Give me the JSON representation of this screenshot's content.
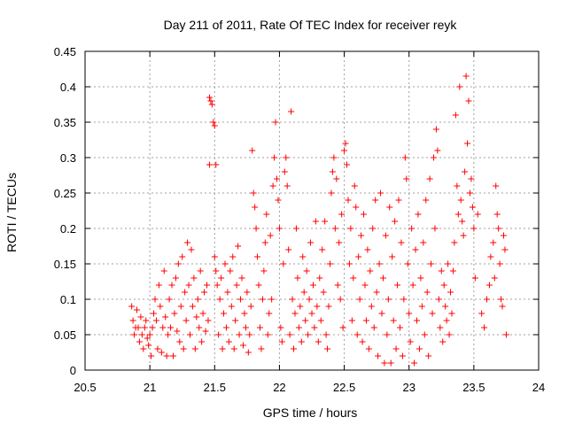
{
  "chart_data": {
    "type": "scatter",
    "title": "Day 211 of 2011, Rate Of TEC Index for receiver reyk",
    "xlabel": "GPS time / hours",
    "ylabel": "ROTI / TECUs",
    "xlim": [
      20.5,
      24
    ],
    "ylim": [
      0,
      0.45
    ],
    "xticks": [
      20.5,
      21,
      21.5,
      22,
      22.5,
      23,
      23.5,
      24
    ],
    "xtick_labels": [
      "20.5",
      "21",
      "21.5",
      "22",
      "22.5",
      "23",
      "23.5",
      "24"
    ],
    "yticks": [
      0,
      0.05,
      0.1,
      0.15,
      0.2,
      0.25,
      0.3,
      0.35,
      0.4,
      0.45
    ],
    "ytick_labels": [
      "0",
      "0.05",
      "0.1",
      "0.15",
      "0.2",
      "0.25",
      "0.3",
      "0.35",
      "0.4",
      "0.45"
    ],
    "grid": true,
    "marker": "+",
    "color": "#ff0000",
    "series": [
      {
        "name": "ROTI",
        "points": [
          [
            20.86,
            0.09
          ],
          [
            20.87,
            0.07
          ],
          [
            20.88,
            0.05
          ],
          [
            20.89,
            0.06
          ],
          [
            20.9,
            0.085
          ],
          [
            20.91,
            0.06
          ],
          [
            20.92,
            0.04
          ],
          [
            20.93,
            0.075
          ],
          [
            20.94,
            0.05
          ],
          [
            20.95,
            0.03
          ],
          [
            20.96,
            0.06
          ],
          [
            20.97,
            0.07
          ],
          [
            20.98,
            0.045
          ],
          [
            20.99,
            0.035
          ],
          [
            21.0,
            0.05
          ],
          [
            21.01,
            0.02
          ],
          [
            21.02,
            0.06
          ],
          [
            21.03,
            0.08
          ],
          [
            21.04,
            0.1
          ],
          [
            21.05,
            0.07
          ],
          [
            21.06,
            0.03
          ],
          [
            21.07,
            0.12
          ],
          [
            21.08,
            0.09
          ],
          [
            21.09,
            0.025
          ],
          [
            21.1,
            0.06
          ],
          [
            21.11,
            0.14
          ],
          [
            21.12,
            0.075
          ],
          [
            21.13,
            0.02
          ],
          [
            21.14,
            0.05
          ],
          [
            21.15,
            0.1
          ],
          [
            21.16,
            0.06
          ],
          [
            21.17,
            0.12
          ],
          [
            21.18,
            0.02
          ],
          [
            21.19,
            0.08
          ],
          [
            21.2,
            0.13
          ],
          [
            21.21,
            0.055
          ],
          [
            21.22,
            0.15
          ],
          [
            21.23,
            0.04
          ],
          [
            21.24,
            0.09
          ],
          [
            21.25,
            0.16
          ],
          [
            21.26,
            0.03
          ],
          [
            21.27,
            0.11
          ],
          [
            21.28,
            0.07
          ],
          [
            21.29,
            0.18
          ],
          [
            21.3,
            0.12
          ],
          [
            21.31,
            0.05
          ],
          [
            21.32,
            0.17
          ],
          [
            21.33,
            0.09
          ],
          [
            21.34,
            0.13
          ],
          [
            21.35,
            0.03
          ],
          [
            21.36,
            0.075
          ],
          [
            21.37,
            0.1
          ],
          [
            21.38,
            0.06
          ],
          [
            21.39,
            0.14
          ],
          [
            21.4,
            0.04
          ],
          [
            21.41,
            0.08
          ],
          [
            21.42,
            0.11
          ],
          [
            21.43,
            0.055
          ],
          [
            21.44,
            0.12
          ],
          [
            21.45,
            0.07
          ],
          [
            21.46,
            0.385
          ],
          [
            21.47,
            0.38
          ],
          [
            21.48,
            0.375
          ],
          [
            21.49,
            0.35
          ],
          [
            21.5,
            0.345
          ],
          [
            21.46,
            0.29
          ],
          [
            21.51,
            0.29
          ],
          [
            21.5,
            0.16
          ],
          [
            21.51,
            0.14
          ],
          [
            21.52,
            0.12
          ],
          [
            21.53,
            0.05
          ],
          [
            21.54,
            0.1
          ],
          [
            21.55,
            0.13
          ],
          [
            21.56,
            0.03
          ],
          [
            21.57,
            0.08
          ],
          [
            21.58,
            0.15
          ],
          [
            21.59,
            0.06
          ],
          [
            21.6,
            0.11
          ],
          [
            21.61,
            0.04
          ],
          [
            21.62,
            0.14
          ],
          [
            21.63,
            0.09
          ],
          [
            21.64,
            0.16
          ],
          [
            21.65,
            0.03
          ],
          [
            21.66,
            0.07
          ],
          [
            21.67,
            0.12
          ],
          [
            21.68,
            0.175
          ],
          [
            21.69,
            0.05
          ],
          [
            21.7,
            0.1
          ],
          [
            21.71,
            0.13
          ],
          [
            21.72,
            0.035
          ],
          [
            21.73,
            0.08
          ],
          [
            21.74,
            0.06
          ],
          [
            21.75,
            0.11
          ],
          [
            21.76,
            0.025
          ],
          [
            21.77,
            0.05
          ],
          [
            21.78,
            0.09
          ],
          [
            21.79,
            0.31
          ],
          [
            21.8,
            0.25
          ],
          [
            21.81,
            0.23
          ],
          [
            21.82,
            0.2
          ],
          [
            21.83,
            0.16
          ],
          [
            21.84,
            0.12
          ],
          [
            21.85,
            0.06
          ],
          [
            21.86,
            0.03
          ],
          [
            21.87,
            0.1
          ],
          [
            21.88,
            0.14
          ],
          [
            21.89,
            0.18
          ],
          [
            21.9,
            0.22
          ],
          [
            21.91,
            0.05
          ],
          [
            21.92,
            0.08
          ],
          [
            21.93,
            0.19
          ],
          [
            21.94,
            0.1
          ],
          [
            21.95,
            0.26
          ],
          [
            21.96,
            0.3
          ],
          [
            21.97,
            0.35
          ],
          [
            21.98,
            0.27
          ],
          [
            21.99,
            0.24
          ],
          [
            22.0,
            0.2
          ],
          [
            22.01,
            0.06
          ],
          [
            22.02,
            0.04
          ],
          [
            22.03,
            0.15
          ],
          [
            22.04,
            0.28
          ],
          [
            22.05,
            0.3
          ],
          [
            22.06,
            0.26
          ],
          [
            22.07,
            0.17
          ],
          [
            22.08,
            0.05
          ],
          [
            22.09,
            0.365
          ],
          [
            22.1,
            0.1
          ],
          [
            22.11,
            0.03
          ],
          [
            22.12,
            0.08
          ],
          [
            22.13,
            0.2
          ],
          [
            22.14,
            0.13
          ],
          [
            22.15,
            0.06
          ],
          [
            22.16,
            0.09
          ],
          [
            22.17,
            0.04
          ],
          [
            22.18,
            0.16
          ],
          [
            22.19,
            0.11
          ],
          [
            22.2,
            0.07
          ],
          [
            22.21,
            0.14
          ],
          [
            22.22,
            0.05
          ],
          [
            22.23,
            0.1
          ],
          [
            22.24,
            0.18
          ],
          [
            22.25,
            0.08
          ],
          [
            22.26,
            0.12
          ],
          [
            22.27,
            0.06
          ],
          [
            22.28,
            0.21
          ],
          [
            22.29,
            0.09
          ],
          [
            22.3,
            0.04
          ],
          [
            22.31,
            0.13
          ],
          [
            22.32,
            0.07
          ],
          [
            22.33,
            0.17
          ],
          [
            22.34,
            0.11
          ],
          [
            22.35,
            0.21
          ],
          [
            22.36,
            0.05
          ],
          [
            22.37,
            0.03
          ],
          [
            22.38,
            0.09
          ],
          [
            22.39,
            0.15
          ],
          [
            22.4,
            0.25
          ],
          [
            22.41,
            0.28
          ],
          [
            22.42,
            0.3
          ],
          [
            22.43,
            0.2
          ],
          [
            22.44,
            0.27
          ],
          [
            22.45,
            0.12
          ],
          [
            22.46,
            0.18
          ],
          [
            22.47,
            0.1
          ],
          [
            22.48,
            0.22
          ],
          [
            22.49,
            0.06
          ],
          [
            22.5,
            0.31
          ],
          [
            22.51,
            0.32
          ],
          [
            22.52,
            0.29
          ],
          [
            22.53,
            0.24
          ],
          [
            22.54,
            0.15
          ],
          [
            22.55,
            0.2
          ],
          [
            22.56,
            0.07
          ],
          [
            22.57,
            0.13
          ],
          [
            22.58,
            0.26
          ],
          [
            22.59,
            0.23
          ],
          [
            22.6,
            0.05
          ],
          [
            22.61,
            0.16
          ],
          [
            22.62,
            0.1
          ],
          [
            22.63,
            0.19
          ],
          [
            22.64,
            0.04
          ],
          [
            22.65,
            0.22
          ],
          [
            22.66,
            0.12
          ],
          [
            22.67,
            0.07
          ],
          [
            22.68,
            0.17
          ],
          [
            22.69,
            0.03
          ],
          [
            22.7,
            0.14
          ],
          [
            22.71,
            0.09
          ],
          [
            22.72,
            0.2
          ],
          [
            22.73,
            0.06
          ],
          [
            22.74,
            0.24
          ],
          [
            22.75,
            0.11
          ],
          [
            22.76,
            0.02
          ],
          [
            22.77,
            0.15
          ],
          [
            22.78,
            0.25
          ],
          [
            22.79,
            0.08
          ],
          [
            22.8,
            0.13
          ],
          [
            22.81,
            0.01
          ],
          [
            22.82,
            0.19
          ],
          [
            22.83,
            0.05
          ],
          [
            22.84,
            0.1
          ],
          [
            22.85,
            0.23
          ],
          [
            22.86,
            0.01
          ],
          [
            22.87,
            0.16
          ],
          [
            22.88,
            0.07
          ],
          [
            22.89,
            0.21
          ],
          [
            22.9,
            0.03
          ],
          [
            22.91,
            0.12
          ],
          [
            22.92,
            0.24
          ],
          [
            22.93,
            0.06
          ],
          [
            22.94,
            0.18
          ],
          [
            22.95,
            0.02
          ],
          [
            22.96,
            0.1
          ],
          [
            22.97,
            0.3
          ],
          [
            22.98,
            0.27
          ],
          [
            22.99,
            0.15
          ],
          [
            23.0,
            0.08
          ],
          [
            23.01,
            0.04
          ],
          [
            23.02,
            0.2
          ],
          [
            23.03,
            0.12
          ],
          [
            23.04,
            0.01
          ],
          [
            23.05,
            0.17
          ],
          [
            23.06,
            0.07
          ],
          [
            23.07,
            0.22
          ],
          [
            23.08,
            0.03
          ],
          [
            23.09,
            0.13
          ],
          [
            23.1,
            0.09
          ],
          [
            23.11,
            0.18
          ],
          [
            23.12,
            0.05
          ],
          [
            23.13,
            0.24
          ],
          [
            23.14,
            0.11
          ],
          [
            23.15,
            0.02
          ],
          [
            23.16,
            0.27
          ],
          [
            23.17,
            0.15
          ],
          [
            23.18,
            0.08
          ],
          [
            23.19,
            0.3
          ],
          [
            23.2,
            0.2
          ],
          [
            23.21,
            0.34
          ],
          [
            23.22,
            0.31
          ],
          [
            23.23,
            0.1
          ],
          [
            23.24,
            0.06
          ],
          [
            23.25,
            0.14
          ],
          [
            23.26,
            0.04
          ],
          [
            23.27,
            0.12
          ],
          [
            23.28,
            0.09
          ],
          [
            23.29,
            0.07
          ],
          [
            23.3,
            0.15
          ],
          [
            23.31,
            0.05
          ],
          [
            23.32,
            0.11
          ],
          [
            23.33,
            0.08
          ],
          [
            23.34,
            0.14
          ],
          [
            23.35,
            0.18
          ],
          [
            23.36,
            0.36
          ],
          [
            23.37,
            0.26
          ],
          [
            23.38,
            0.22
          ],
          [
            23.39,
            0.4
          ],
          [
            23.4,
            0.24
          ],
          [
            23.41,
            0.21
          ],
          [
            23.42,
            0.19
          ],
          [
            23.43,
            0.28
          ],
          [
            23.44,
            0.415
          ],
          [
            23.45,
            0.32
          ],
          [
            23.46,
            0.38
          ],
          [
            23.47,
            0.25
          ],
          [
            23.48,
            0.27
          ],
          [
            23.49,
            0.23
          ],
          [
            23.5,
            0.2
          ],
          [
            23.51,
            0.13
          ],
          [
            23.53,
            0.22
          ],
          [
            23.56,
            0.08
          ],
          [
            23.58,
            0.06
          ],
          [
            23.6,
            0.1
          ],
          [
            23.62,
            0.12
          ],
          [
            23.63,
            0.16
          ],
          [
            23.65,
            0.18
          ],
          [
            23.66,
            0.13
          ],
          [
            23.67,
            0.26
          ],
          [
            23.68,
            0.22
          ],
          [
            23.69,
            0.2
          ],
          [
            23.7,
            0.15
          ],
          [
            23.71,
            0.1
          ],
          [
            23.72,
            0.09
          ],
          [
            23.73,
            0.19
          ],
          [
            23.74,
            0.17
          ],
          [
            23.75,
            0.05
          ]
        ]
      }
    ]
  }
}
